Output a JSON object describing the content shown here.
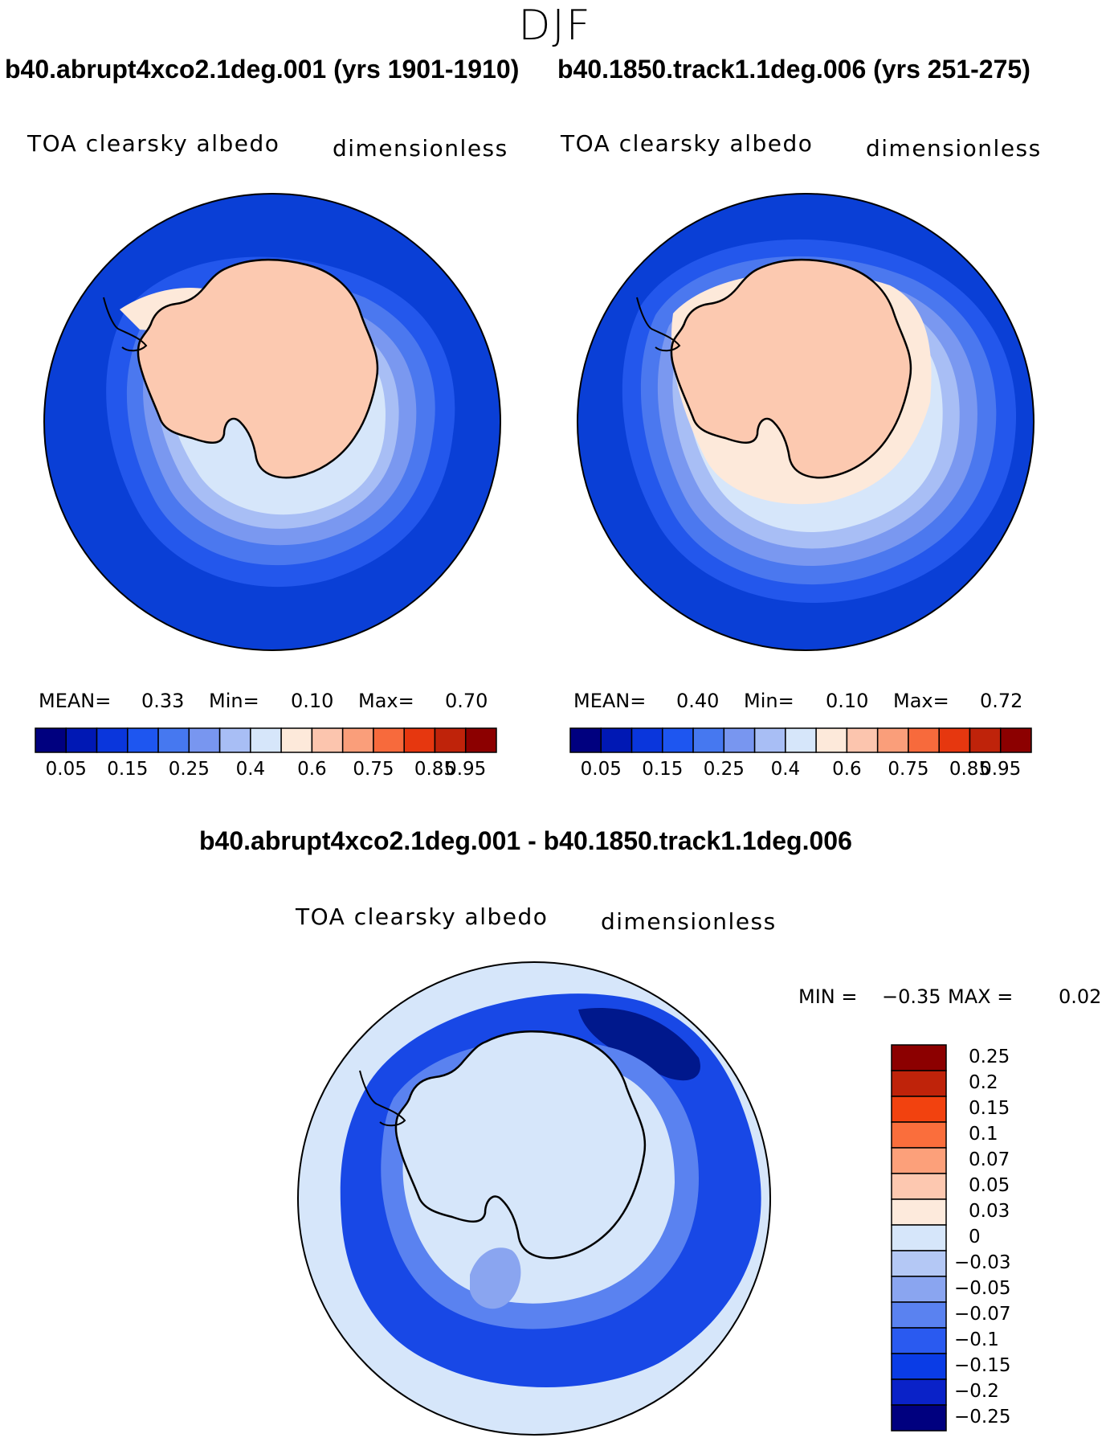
{
  "season": "DJF",
  "panels": [
    {
      "case_title": "b40.abrupt4xco2.1deg.001 (yrs 1901-1910)",
      "variable": "TOA clearsky albedo",
      "units": "dimensionless",
      "stats": {
        "mean_label": "MEAN=",
        "mean": "0.33",
        "min_label": "Min=",
        "min": "0.10",
        "max_label": "Max=",
        "max": "0.70"
      }
    },
    {
      "case_title": "b40.1850.track1.1deg.006 (yrs 251-275)",
      "variable": "TOA clearsky albedo",
      "units": "dimensionless",
      "stats": {
        "mean_label": "MEAN=",
        "mean": "0.40",
        "min_label": "Min=",
        "min": "0.10",
        "max_label": "Max=",
        "max": "0.72"
      }
    }
  ],
  "abs_colorbar": {
    "colors": [
      "#00007f",
      "#0018b4",
      "#0a36dc",
      "#1e56f0",
      "#4678f0",
      "#7896f0",
      "#a8bef5",
      "#d6e6fa",
      "#fde9da",
      "#fcc5ae",
      "#fa9e7a",
      "#f76a3c",
      "#e6370f",
      "#bf230a",
      "#8c0000"
    ],
    "tick_labels": [
      "0.05",
      "0.15",
      "0.25",
      "0.4",
      "0.6",
      "0.75",
      "0.85",
      "0.95"
    ],
    "tick_boundaries": [
      1,
      3,
      5,
      7,
      9,
      11,
      13,
      14
    ]
  },
  "diff": {
    "title": "b40.abrupt4xco2.1deg.001 - b40.1850.track1.1deg.006",
    "variable": "TOA clearsky albedo",
    "units": "dimensionless",
    "stats": {
      "min_label": "MIN =",
      "min": "−0.35",
      "max_label": "MAX =",
      "max": "0.02"
    },
    "colorbar": {
      "colors_top_to_bottom": [
        "#8c0000",
        "#bf230a",
        "#f2420f",
        "#fa6e3c",
        "#fca07a",
        "#fdc8b0",
        "#fdeadc",
        "#d6e6fa",
        "#b4c8f5",
        "#8aa5f0",
        "#5a82f0",
        "#2a5af0",
        "#0a3ce6",
        "#0a22c8",
        "#00007f"
      ],
      "labels_top_to_bottom": [
        "0.25",
        "0.2",
        "0.15",
        "0.1",
        "0.07",
        "0.05",
        "0.03",
        "0",
        "−0.03",
        "−0.05",
        "−0.07",
        "−0.1",
        "−0.15",
        "−0.2",
        "−0.25"
      ]
    }
  },
  "map_legend": {
    "ocean_far": "#0a3fd6",
    "antarctica": "#fcc9b0",
    "diff_background": "#d6e6fa",
    "diff_ring": "#1848e6"
  }
}
